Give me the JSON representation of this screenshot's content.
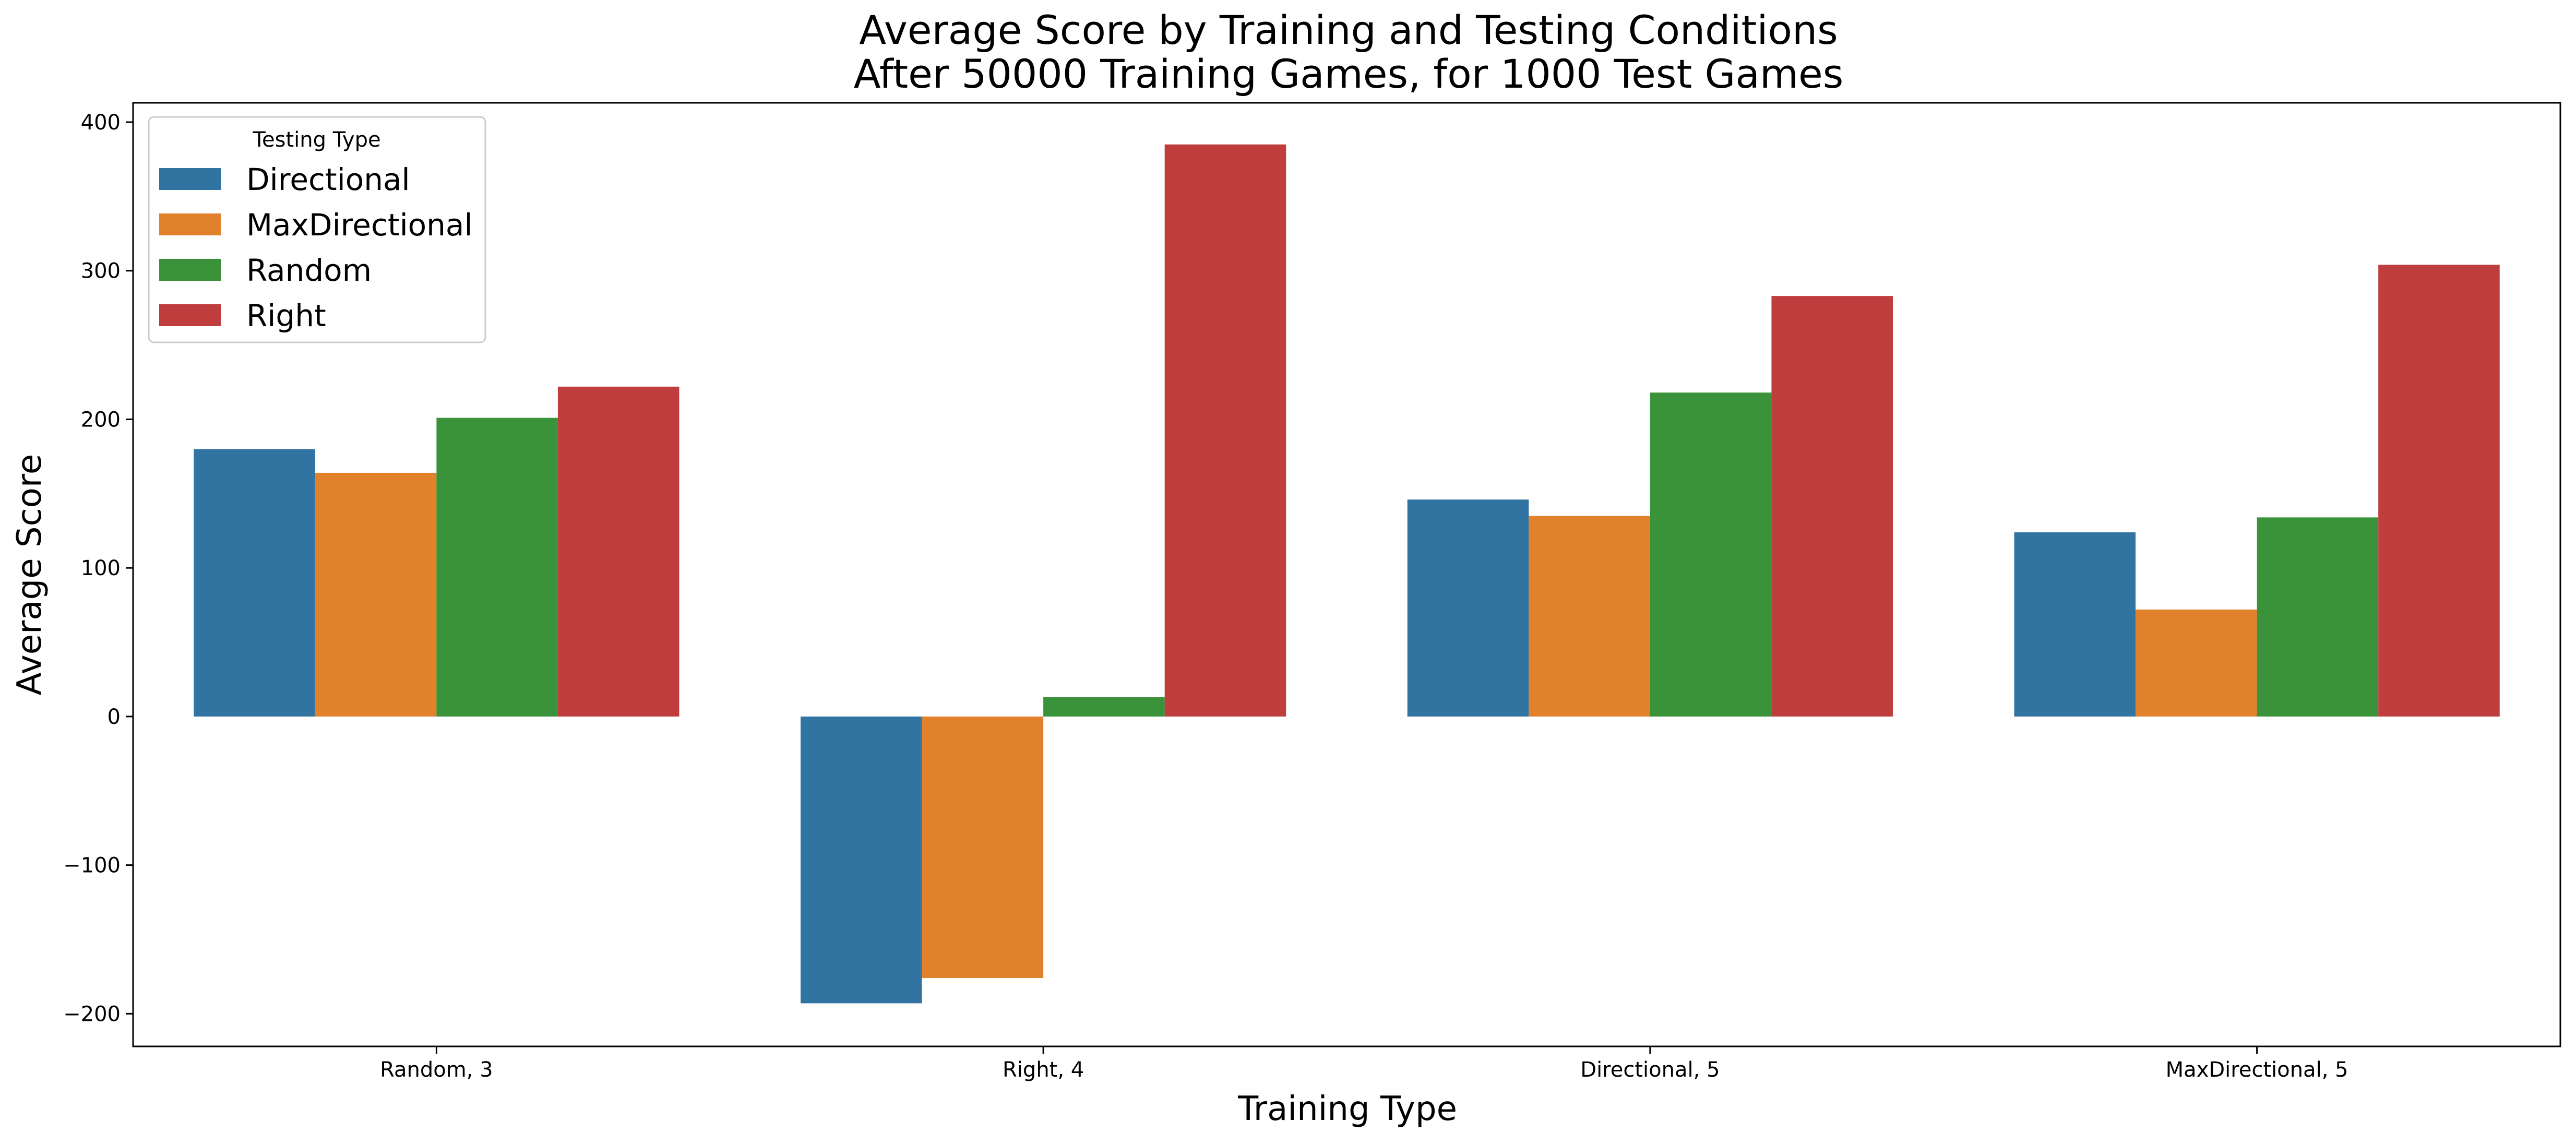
{
  "chart_data": {
    "type": "bar",
    "title": "Average Score by Training and Testing Conditions",
    "subtitle": "After 50000 Training Games, for 1000 Test Games",
    "xlabel": "Training Type",
    "ylabel": "Average Score",
    "categories": [
      "Random, 3",
      "Right, 4",
      "Directional, 5",
      "MaxDirectional, 5"
    ],
    "yticks": [
      -200,
      -100,
      0,
      100,
      200,
      300,
      400
    ],
    "ylim": [
      -222,
      413
    ],
    "grid": false,
    "legend": {
      "title": "Testing Type",
      "position": "top-left"
    },
    "series": [
      {
        "name": "Directional",
        "color": "#3274a1",
        "values": [
          180,
          -193,
          146,
          124
        ]
      },
      {
        "name": "MaxDirectional",
        "color": "#e1812c",
        "values": [
          164,
          -176,
          135,
          72
        ]
      },
      {
        "name": "Random",
        "color": "#3a923a",
        "values": [
          201,
          13,
          218,
          134
        ]
      },
      {
        "name": "Right",
        "color": "#c03d3e",
        "values": [
          222,
          385,
          283,
          304
        ]
      }
    ]
  }
}
